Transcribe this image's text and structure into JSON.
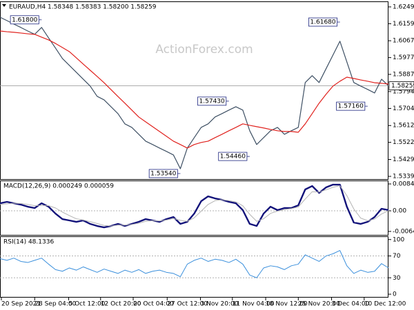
{
  "chart_data": [
    {
      "type": "line",
      "title": "EURAUD,H4 1.58348 1.58383 1.58200 1.58259",
      "watermark": "ActionForex.com",
      "last_price": 1.58259,
      "xlim": [
        0,
        56
      ],
      "x": [
        0,
        1,
        2,
        3,
        4,
        5,
        6,
        7,
        8,
        9,
        10,
        11,
        12,
        13,
        14,
        15,
        16,
        17,
        18,
        19,
        20,
        21,
        22,
        23,
        24,
        25,
        26,
        27,
        28,
        29,
        30,
        31,
        32,
        33,
        34,
        35,
        36,
        37,
        38,
        39,
        40,
        41,
        42,
        43,
        44,
        45,
        46,
        47,
        48,
        49,
        50,
        51,
        52,
        53,
        54,
        55,
        56
      ],
      "ylim": [
        1.53242,
        1.62791
      ],
      "yticks": [
        1.62495,
        {
          "value": 1.6159,
          "label": "1.61590"
        },
        1.60675,
        {
          "value": 1.5977,
          "label": "1.59770"
        },
        {
          "value": 1.5887,
          "label": "1.58870"
        },
        1.57945,
        {
          "value": 1.5704,
          "label": "1.57040"
        },
        {
          "value": 1.5612,
          "label": "1.56120"
        },
        {
          "value": 1.5522,
          "label": "1.55220"
        },
        1.54295,
        {
          "value": 1.5339,
          "label": "1.53390"
        }
      ],
      "series": [
        {
          "color": "#3d4f63",
          "values": [
            1.6194,
            1.6176,
            1.6157,
            1.6139,
            1.612,
            1.6102,
            1.6139,
            1.6083,
            1.6028,
            1.5972,
            1.5935,
            1.5898,
            1.5861,
            1.5824,
            1.5769,
            1.575,
            1.5713,
            1.5676,
            1.5621,
            1.5602,
            1.5565,
            1.5528,
            1.551,
            1.5491,
            1.5473,
            1.5454,
            1.538,
            1.5491,
            1.5547,
            1.5602,
            1.5621,
            1.5658,
            1.5676,
            1.5695,
            1.5713,
            1.5695,
            1.5584,
            1.551,
            1.5547,
            1.5584,
            1.5602,
            1.5565,
            1.5584,
            1.5602,
            1.5843,
            1.588,
            1.5843,
            1.5917,
            1.5991,
            1.6065,
            1.5954,
            1.5843,
            1.5824,
            1.5806,
            1.5787,
            1.5861,
            1.5826
          ]
        },
        {
          "color": "#e0201c",
          "values": [
            1.612,
            1.6116,
            1.6113,
            1.6109,
            1.6105,
            1.6102,
            1.6087,
            1.6072,
            1.6053,
            1.6031,
            1.6009,
            1.5976,
            1.5942,
            1.5909,
            1.5876,
            1.5842,
            1.5805,
            1.5768,
            1.5732,
            1.5695,
            1.5658,
            1.5632,
            1.5606,
            1.558,
            1.5554,
            1.5528,
            1.551,
            1.5491,
            1.551,
            1.5521,
            1.5528,
            1.5547,
            1.5565,
            1.5584,
            1.5602,
            1.5621,
            1.5613,
            1.5606,
            1.5599,
            1.5591,
            1.5584,
            1.558,
            1.558,
            1.5576,
            1.5621,
            1.5676,
            1.5732,
            1.578,
            1.5824,
            1.585,
            1.5872,
            1.5865,
            1.5857,
            1.585,
            1.5842,
            1.5839,
            1.5835
          ]
        }
      ],
      "annotations": [
        {
          "x": 6,
          "value": 1.618,
          "label": "1.61800"
        },
        {
          "x": 26,
          "value": 1.5354,
          "label": "1.53540"
        },
        {
          "x": 33,
          "value": 1.5743,
          "label": "1.57430"
        },
        {
          "x": 36,
          "value": 1.5446,
          "label": "1.54460"
        },
        {
          "x": 49,
          "value": 1.6168,
          "label": "1.61680"
        },
        {
          "x": 53,
          "value": 1.5716,
          "label": "1.57160"
        }
      ]
    },
    {
      "type": "line",
      "title": "MACD(12,26,9) 0.000249 0.000059",
      "xlim": [
        0,
        56
      ],
      "x": [
        0,
        1,
        2,
        3,
        4,
        5,
        6,
        7,
        8,
        9,
        10,
        11,
        12,
        13,
        14,
        15,
        16,
        17,
        18,
        19,
        20,
        21,
        22,
        23,
        24,
        25,
        26,
        27,
        28,
        29,
        30,
        31,
        32,
        33,
        34,
        35,
        36,
        37,
        38,
        39,
        40,
        41,
        42,
        43,
        44,
        45,
        46,
        47,
        48,
        49,
        50,
        51,
        52,
        53,
        54,
        55,
        56
      ],
      "ylim": [
        -0.00758,
        0.00954
      ],
      "yticks": [
        0.008452,
        {
          "value": 0,
          "label": "0.00"
        },
        -0.006475
      ],
      "levels": [
        0
      ],
      "series": [
        {
          "color": "#12127a",
          "width": 2.4,
          "values": [
            0.00238,
            0.00282,
            0.00238,
            0.00195,
            0.0013,
            0.00087,
            0.00238,
            0.0013,
            -0.00087,
            -0.0026,
            -0.00303,
            -0.00347,
            -0.00303,
            -0.00412,
            -0.00477,
            -0.0052,
            -0.00477,
            -0.00412,
            -0.00477,
            -0.00412,
            -0.00347,
            -0.0026,
            -0.00303,
            -0.00347,
            -0.0026,
            -0.00195,
            -0.00412,
            -0.00347,
            -0.00087,
            0.00303,
            0.00455,
            0.0039,
            0.00347,
            0.00282,
            0.00238,
            0.00022,
            -0.00412,
            -0.00477,
            -0.00087,
            0.0013,
            0.00022,
            0.00087,
            0.00087,
            0.00173,
            0.00672,
            0.0078,
            0.00563,
            0.00737,
            0.00823,
            0.00823,
            0.0013,
            -0.00368,
            -0.00412,
            -0.00347,
            -0.00195,
            0.00065,
            0.00025
          ]
        },
        {
          "color": "#b4b4b4",
          "width": 1,
          "values": [
            0.002,
            0.0022,
            0.0024,
            0.0023,
            0.002,
            0.0016,
            0.0017,
            0.0016,
            0.0009,
            -0.0004,
            -0.0015,
            -0.0025,
            -0.0029,
            -0.0034,
            -0.004,
            -0.0046,
            -0.0048,
            -0.0045,
            -0.0045,
            -0.0043,
            -0.0039,
            -0.0033,
            -0.0031,
            -0.0032,
            -0.0029,
            -0.0024,
            -0.003,
            -0.0033,
            -0.0022,
            -0.0001,
            0.002,
            0.0032,
            0.0035,
            0.0032,
            0.0028,
            0.0016,
            -0.0011,
            -0.0033,
            -0.0025,
            -0.0008,
            -0.0001,
            0.0004,
            0.0007,
            0.0012,
            0.0037,
            0.006,
            0.0059,
            0.0066,
            0.0074,
            0.0079,
            0.0048,
            0.0006,
            -0.0023,
            -0.0031,
            -0.0026,
            -0.001,
            6e-05
          ]
        }
      ]
    },
    {
      "type": "line",
      "title": "RSI(14) 48.1336",
      "xlim": [
        0,
        56
      ],
      "x": [
        0,
        1,
        2,
        3,
        4,
        5,
        6,
        7,
        8,
        9,
        10,
        11,
        12,
        13,
        14,
        15,
        16,
        17,
        18,
        19,
        20,
        21,
        22,
        23,
        24,
        25,
        26,
        27,
        28,
        29,
        30,
        31,
        32,
        33,
        34,
        35,
        36,
        37,
        38,
        39,
        40,
        41,
        42,
        43,
        44,
        45,
        46,
        47,
        48,
        49,
        50,
        51,
        52,
        53,
        54,
        55,
        56
      ],
      "ylim": [
        -5,
        106
      ],
      "yticks": [
        100,
        70,
        30,
        0
      ],
      "levels": [
        70,
        30
      ],
      "xticks": [
        {
          "value": 0.2,
          "label": "20 Sep 2021"
        },
        {
          "value": 5,
          "label": "28 Sep 04:00"
        },
        {
          "value": 9.9,
          "label": "5 Oct 12:00"
        },
        {
          "value": 14.5,
          "label": "12 Oct 20:00"
        },
        {
          "value": 19.2,
          "label": "20 Oct 04:00"
        },
        {
          "value": 24.1,
          "label": "27 Oct 12:00"
        },
        {
          "value": 28.9,
          "label": "3 Nov 20:00"
        },
        {
          "value": 33.5,
          "label": "11 Nov 04:00"
        },
        {
          "value": 38.3,
          "label": "18 Nov 12:00"
        },
        {
          "value": 43,
          "label": "25 Nov 20:00"
        },
        {
          "value": 47.8,
          "label": "3 Dec 04:00"
        },
        {
          "value": 52.5,
          "label": "10 Dec 12:00"
        }
      ],
      "series": [
        {
          "color": "#3a8fdc",
          "width": 1,
          "values": [
            65,
            62,
            66,
            60,
            58,
            62,
            66,
            55,
            45,
            42,
            48,
            44,
            50,
            45,
            40,
            46,
            42,
            38,
            44,
            40,
            45,
            38,
            42,
            44,
            40,
            38,
            32,
            55,
            62,
            66,
            60,
            64,
            62,
            58,
            64,
            55,
            35,
            30,
            48,
            52,
            50,
            45,
            52,
            55,
            72,
            66,
            60,
            70,
            74,
            80,
            52,
            38,
            44,
            40,
            42,
            56,
            48.1336
          ]
        }
      ]
    }
  ]
}
